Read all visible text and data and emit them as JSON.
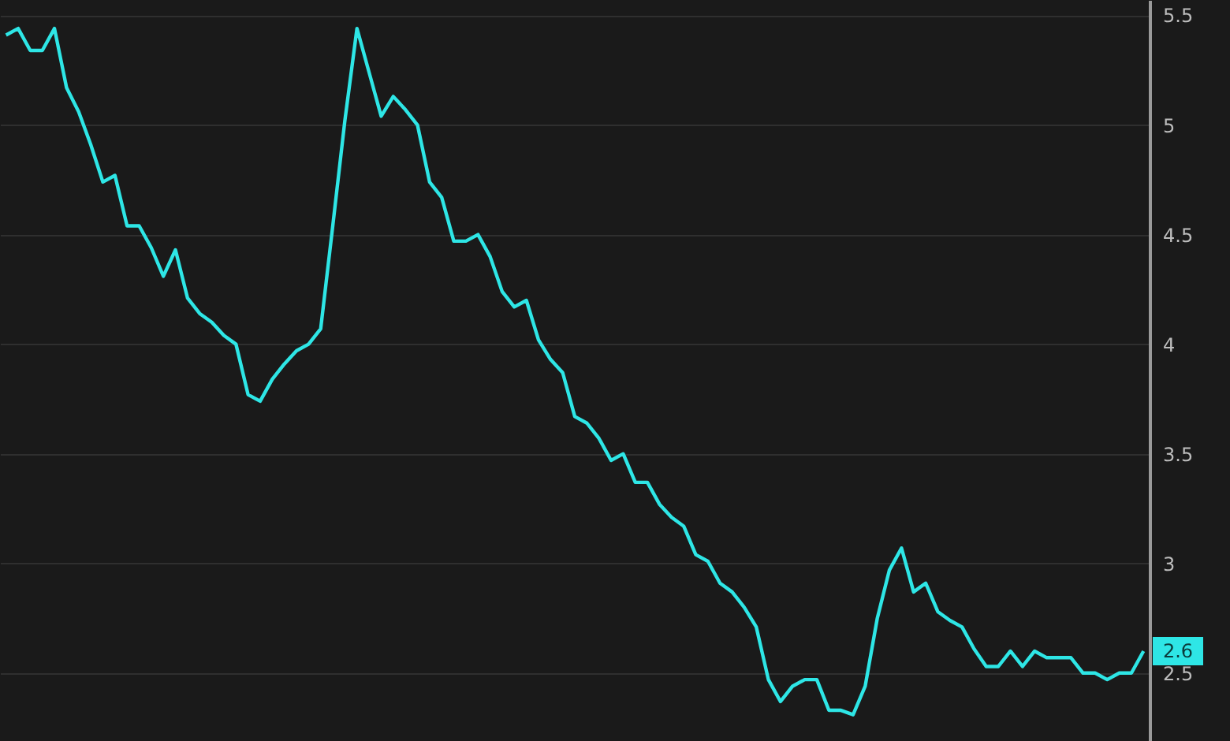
{
  "chart_data": {
    "type": "line",
    "categories": [
      null,
      null,
      null,
      null,
      null,
      null,
      null,
      null,
      null,
      null,
      null,
      null,
      null,
      null,
      null,
      null,
      null,
      null,
      null,
      null,
      null,
      null,
      null,
      null,
      null,
      null,
      null,
      null,
      null,
      null,
      null,
      null,
      null,
      null,
      null,
      null,
      null,
      null,
      null,
      null,
      null,
      null,
      null,
      null,
      null,
      null,
      null,
      null,
      null,
      null,
      null,
      null,
      null,
      null,
      null,
      null,
      null,
      null,
      null,
      null,
      null,
      null,
      null,
      null,
      null,
      null,
      null,
      null,
      null,
      null,
      null,
      null,
      null,
      null,
      null,
      null,
      null,
      null,
      null,
      null,
      null,
      null,
      null,
      null,
      null,
      null,
      null,
      null,
      null,
      null,
      null,
      null,
      null,
      null,
      null
    ],
    "series": [
      {
        "color": "#2ee6e6",
        "values": [
          5.41,
          5.44,
          5.34,
          5.34,
          5.44,
          5.17,
          5.06,
          4.91,
          4.74,
          4.77,
          4.54,
          4.54,
          4.44,
          4.31,
          4.43,
          4.21,
          4.14,
          4.1,
          4.04,
          4.0,
          3.77,
          3.74,
          3.84,
          3.91,
          3.97,
          4.0,
          4.07,
          4.54,
          5.02,
          5.44,
          5.24,
          5.04,
          5.13,
          5.07,
          5.0,
          4.74,
          4.67,
          4.47,
          4.47,
          4.5,
          4.4,
          4.24,
          4.17,
          4.2,
          4.02,
          3.93,
          3.87,
          3.67,
          3.64,
          3.57,
          3.47,
          3.5,
          3.37,
          3.37,
          3.27,
          3.21,
          3.17,
          3.04,
          3.01,
          2.91,
          2.87,
          2.8,
          2.71,
          2.47,
          2.37,
          2.44,
          2.47,
          2.47,
          2.33,
          2.33,
          2.31,
          2.44,
          2.75,
          2.97,
          3.07,
          2.87,
          2.91,
          2.78,
          2.74,
          2.71,
          2.61,
          2.53,
          2.53,
          2.6,
          2.53,
          2.6,
          2.57,
          2.57,
          2.57,
          2.5,
          2.5,
          2.47,
          2.5,
          2.5,
          2.6
        ],
        "value_labels": [
          null,
          null,
          null,
          null,
          null,
          null,
          null,
          null,
          null,
          null,
          null,
          null,
          null,
          null,
          null,
          null,
          null,
          null,
          null,
          null,
          null,
          null,
          null,
          null,
          null,
          null,
          null,
          null,
          null,
          null,
          null,
          null,
          null,
          null,
          null,
          null,
          null,
          null,
          null,
          null,
          null,
          null,
          null,
          null,
          null,
          null,
          null,
          null,
          null,
          null,
          null,
          null,
          null,
          null,
          null,
          null,
          null,
          null,
          null,
          null,
          null,
          null,
          null,
          null,
          null,
          null,
          null,
          null,
          null,
          null,
          null,
          null,
          null,
          null,
          null,
          null,
          null,
          null,
          null,
          null,
          null,
          null,
          null,
          null,
          null,
          null,
          null,
          null,
          null,
          null,
          null,
          null,
          null,
          null,
          "2.6"
        ]
      }
    ],
    "ylim": [
      2.19,
      5.57
    ],
    "yticks": [
      2.5,
      3,
      3.5,
      4,
      4.5,
      5,
      5.5
    ],
    "grid": "y",
    "tick_labels": "y"
  }
}
